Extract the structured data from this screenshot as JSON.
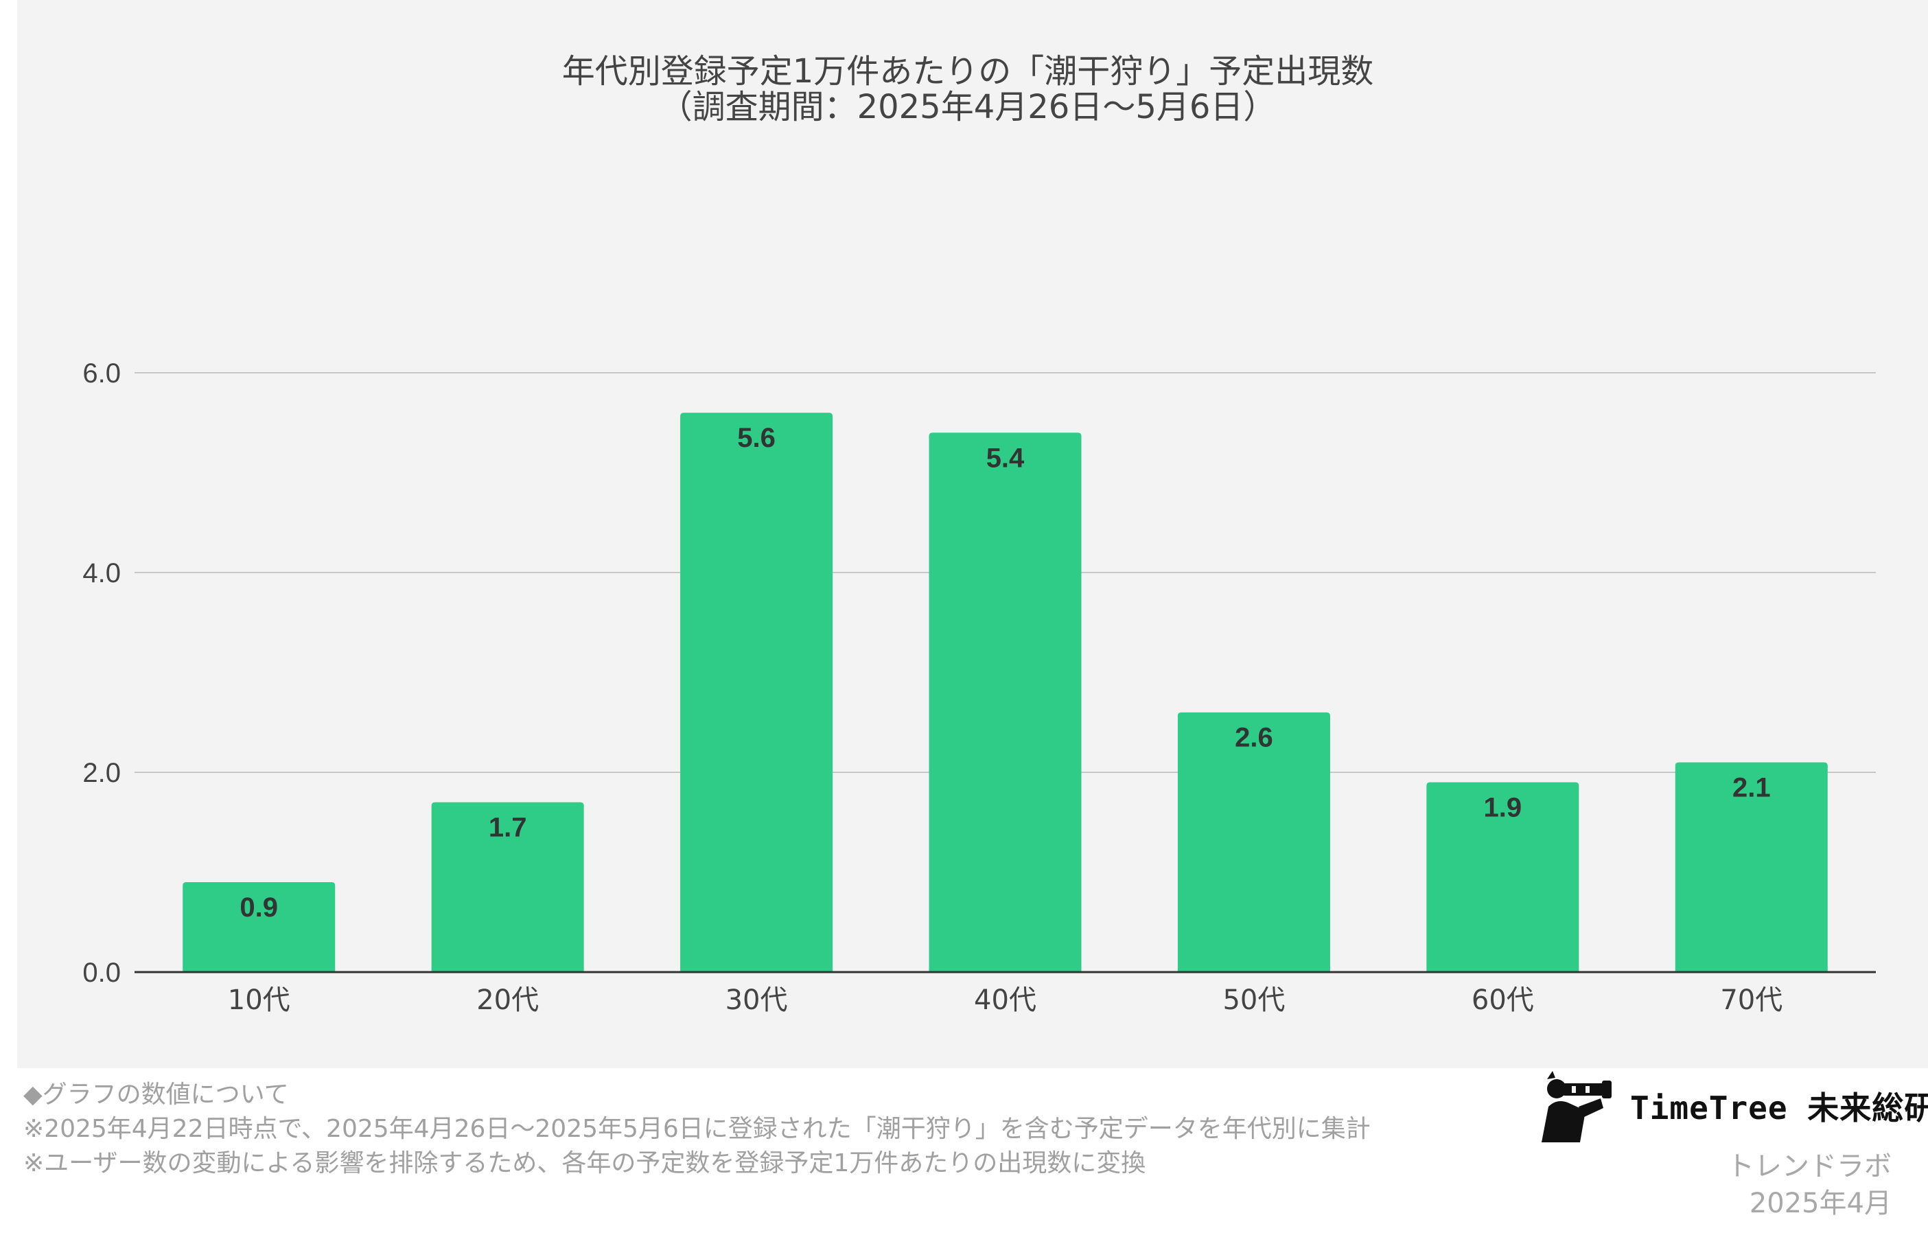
{
  "chart_data": {
    "type": "bar",
    "title": "年代別登録予定1万件あたりの「潮干狩り」予定出現数",
    "subtitle": "（調査期間：2025年4月26日～5月6日）",
    "categories": [
      "10代",
      "20代",
      "30代",
      "40代",
      "50代",
      "60代",
      "70代"
    ],
    "values": [
      0.9,
      1.7,
      5.6,
      5.4,
      2.6,
      1.9,
      2.1
    ],
    "data_labels": [
      "0.9",
      "1.7",
      "5.6",
      "5.4",
      "2.6",
      "1.9",
      "2.1"
    ],
    "yticks": [
      "0.0",
      "2.0",
      "4.0",
      "6.0"
    ],
    "ytick_values": [
      0,
      2,
      4,
      6
    ],
    "ylim": [
      0,
      6
    ],
    "grid": true,
    "legend": "none",
    "bar_color": "#2ecc87",
    "gridline_color": "#c8c8c8",
    "axis_color": "#333333",
    "background_color": "#f3f3f3"
  },
  "notes": {
    "heading": "◆グラフの数値について",
    "line1": "※2025年4月22日時点で、2025年4月26日～2025年5月6日に登録された「潮干狩り」を含む予定データを年代別に集計",
    "line2": "※ユーザー数の変動による影響を排除するため、各年の予定数を登録予定1万件あたりの出現数に変換"
  },
  "brand": {
    "logo_icon": "binoculars-person-icon",
    "name": "TimeTree 未来総研",
    "sub": "トレンドラボ",
    "date": "2025年4月"
  }
}
